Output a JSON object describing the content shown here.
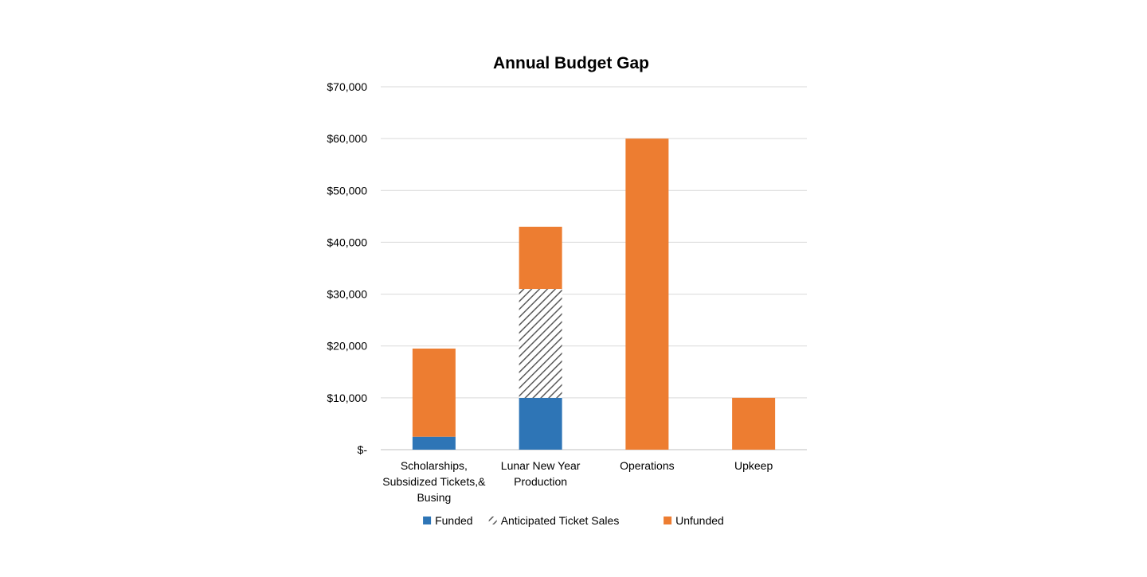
{
  "chart_data": {
    "type": "bar",
    "stacked": true,
    "title": "Annual Budget Gap",
    "xlabel": "",
    "ylabel": "",
    "ylim": [
      0,
      70000
    ],
    "yticks": [
      0,
      10000,
      20000,
      30000,
      40000,
      50000,
      60000,
      70000
    ],
    "ytick_labels": [
      "$-",
      "$10,000",
      "$20,000",
      "$30,000",
      "$40,000",
      "$50,000",
      "$60,000",
      "$70,000"
    ],
    "grid": true,
    "legend_position": "bottom",
    "categories": [
      [
        "Scholarships,",
        "Subsidized Tickets,&",
        "Busing"
      ],
      [
        "Lunar New Year",
        "Production"
      ],
      [
        "Operations"
      ],
      [
        "Upkeep"
      ]
    ],
    "series": [
      {
        "name": "Funded",
        "values": [
          2500,
          10000,
          0,
          0
        ],
        "color": "#2E75B6",
        "pattern": "solid"
      },
      {
        "name": "Anticipated Ticket Sales",
        "values": [
          0,
          21000,
          0,
          0
        ],
        "color": "#595959",
        "pattern": "diagonal-hatch"
      },
      {
        "name": "Unfunded",
        "values": [
          17000,
          12000,
          60000,
          10000
        ],
        "color": "#ED7D31",
        "pattern": "solid"
      }
    ]
  }
}
